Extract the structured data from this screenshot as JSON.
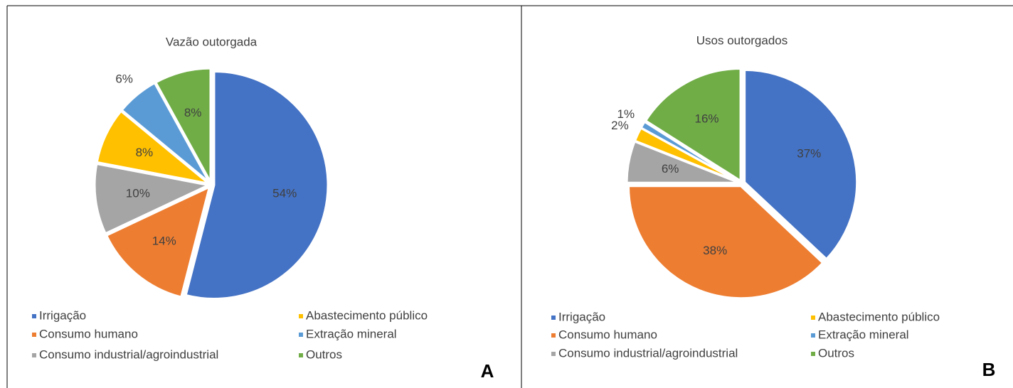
{
  "chart_data": [
    {
      "type": "pie",
      "title": "Vazão outorgada",
      "panel_label": "A",
      "categories": [
        "Irrigação",
        "Consumo humano",
        "Consumo industrial/agroindustrial",
        "Abastecimento público",
        "Extração mineral",
        "Outros"
      ],
      "values": [
        54,
        14,
        10,
        8,
        6,
        8
      ],
      "value_labels": [
        "54%",
        "14%",
        "10%",
        "8%",
        "6%",
        "8%"
      ],
      "colors": [
        "#4472c4",
        "#ed7d31",
        "#a5a5a5",
        "#ffc000",
        "#5b9bd5",
        "#70ad47"
      ],
      "legend": "bottom"
    },
    {
      "type": "pie",
      "title": "Usos outorgados",
      "panel_label": "B",
      "categories": [
        "Irrigação",
        "Consumo humano",
        "Consumo industrial/agroindustrial",
        "Abastecimento público",
        "Extração mineral",
        "Outros"
      ],
      "values": [
        37,
        38,
        6,
        2,
        1,
        16
      ],
      "value_labels": [
        "37%",
        "38%",
        "6%",
        "2%",
        "1%",
        "16%"
      ],
      "colors": [
        "#4472c4",
        "#ed7d31",
        "#a5a5a5",
        "#ffc000",
        "#5b9bd5",
        "#70ad47"
      ],
      "legend": "bottom"
    }
  ]
}
